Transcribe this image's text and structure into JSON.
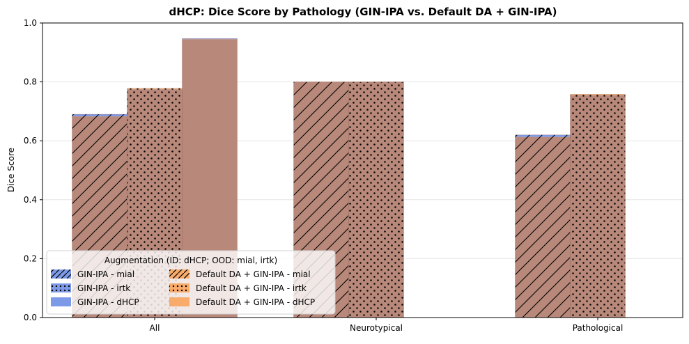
{
  "chart_data": {
    "type": "bar",
    "title": "dHCP: Dice Score by Pathology (GIN-IPA vs. Default DA + GIN-IPA)",
    "xlabel": "",
    "ylabel": "Dice Score",
    "ylim": [
      0,
      1.0
    ],
    "yticks": [
      "0.0",
      "0.2",
      "0.4",
      "0.6",
      "0.8",
      "1.0"
    ],
    "categories": [
      "All",
      "Neurotypical",
      "Pathological"
    ],
    "grid": "horizontal",
    "legend": {
      "title": "Augmentation (ID: dHCP; OOD: mial, irtk)",
      "placement": "lower-left"
    },
    "series": [
      {
        "name": "GIN-IPA - mial",
        "group": "GIN-IPA",
        "pattern": "hatch",
        "values": [
          0.69,
          0.8,
          0.62
        ]
      },
      {
        "name": "GIN-IPA - irtk",
        "group": "GIN-IPA",
        "pattern": "dots",
        "values": [
          0.775,
          0.8,
          0.755
        ]
      },
      {
        "name": "GIN-IPA - dHCP",
        "group": "GIN-IPA",
        "pattern": "solid",
        "values": [
          0.947,
          null,
          null
        ]
      },
      {
        "name": "Default DA + GIN-IPA - mial",
        "group": "Default",
        "pattern": "hatch",
        "values": [
          0.683,
          0.8,
          0.613
        ]
      },
      {
        "name": "Default DA + GIN-IPA - irtk",
        "group": "Default",
        "pattern": "dots",
        "values": [
          0.778,
          0.8,
          0.758
        ]
      },
      {
        "name": "Default DA + GIN-IPA - dHCP",
        "group": "Default",
        "pattern": "solid",
        "values": [
          0.945,
          null,
          null
        ]
      }
    ],
    "colors": {
      "GIN-IPA": "#6f8fe6",
      "Default": "#f8a45d",
      "overlap": "#b8887a"
    }
  }
}
